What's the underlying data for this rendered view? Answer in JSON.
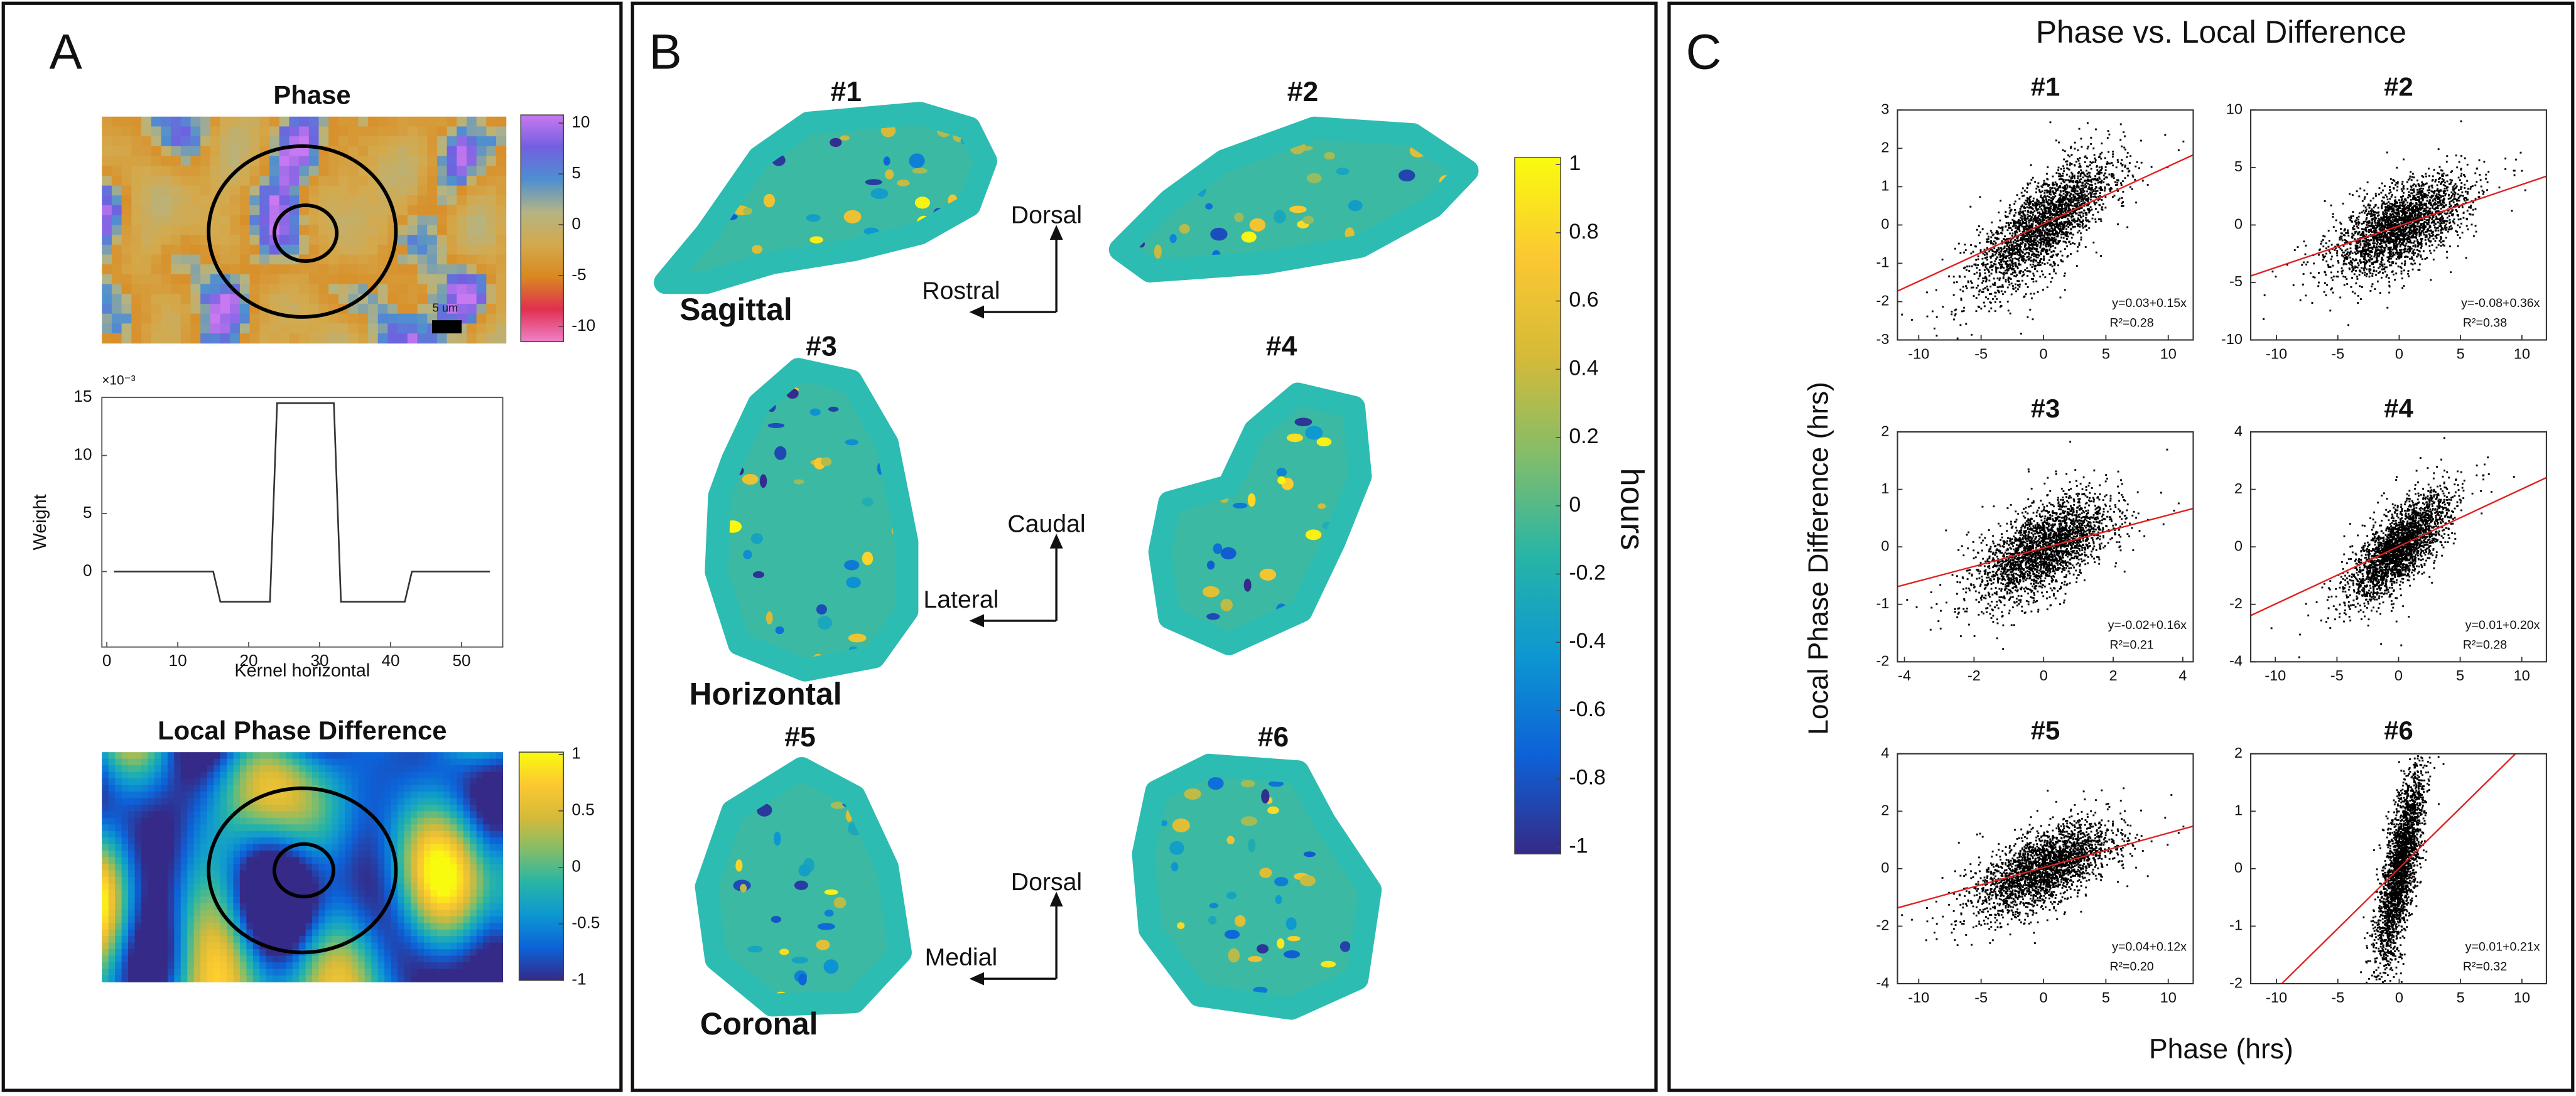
{
  "panel_a": {
    "label": "A",
    "phase": {
      "title": "Phase",
      "scale_bar": "5 um",
      "colorbar": {
        "lim": [
          -11.5,
          10.8
        ],
        "ticks": [
          10,
          5,
          0,
          -5,
          -10
        ]
      }
    },
    "kernel": {
      "exponent_label": "×10⁻³",
      "ylabel": "Weight",
      "xlabel": "Kernel horizontal",
      "xlim": [
        -0.7,
        55.8
      ],
      "ylim": [
        -6.5,
        15
      ],
      "xticks": [
        0,
        10,
        20,
        30,
        40,
        50
      ],
      "yticks": [
        0,
        5,
        10,
        15
      ],
      "x": [
        1,
        15,
        16,
        23,
        24,
        32,
        33,
        42,
        43,
        54
      ],
      "y": [
        0,
        0,
        -2.6,
        -2.6,
        14.5,
        14.5,
        -2.6,
        -2.6,
        0,
        0
      ]
    },
    "local_phase_difference": {
      "title": "Local Phase Difference",
      "colorbar": {
        "lim": [
          -1,
          1.02
        ],
        "ticks": [
          1,
          0.5,
          0,
          -0.5,
          -1
        ]
      }
    }
  },
  "panel_b": {
    "label": "B",
    "sections": [
      "#1",
      "#2",
      "#3",
      "#4",
      "#5",
      "#6"
    ],
    "planes": [
      "Sagittal",
      "Horizontal",
      "Coronal"
    ],
    "orientation": [
      {
        "up": "Dorsal",
        "left": "Rostral"
      },
      {
        "up": "Caudal",
        "left": "Lateral"
      },
      {
        "up": "Dorsal",
        "left": "Medial"
      }
    ],
    "colorbar": {
      "label": "hours",
      "lim": [
        -1.02,
        1.02
      ],
      "ticks": [
        1,
        0.8,
        0.6,
        0.4,
        0.2,
        0,
        -0.2,
        -0.4,
        -0.6,
        -0.8,
        -1
      ]
    }
  },
  "panel_c": {
    "label": "C",
    "title": "Phase vs. Local Difference",
    "ylabel": "Local Phase Difference (hrs)",
    "xlabel": "Phase (hrs)",
    "plots": [
      {
        "title": "#1",
        "xlim": [
          -11.7,
          12
        ],
        "ylim": [
          -3,
          3
        ],
        "xticks": [
          -10,
          -5,
          0,
          5,
          10
        ],
        "yticks": [
          3,
          2,
          1,
          0,
          -1,
          -2,
          -3
        ],
        "fit": {
          "intercept": 0.03,
          "slope": 0.15,
          "equation": "y=0.03+0.15x",
          "r2": "R²=0.28"
        }
      },
      {
        "title": "#2",
        "xlim": [
          -12.1,
          12
        ],
        "ylim": [
          -10,
          10
        ],
        "xticks": [
          -10,
          -5,
          0,
          5,
          10
        ],
        "yticks": [
          10,
          5,
          0,
          -5,
          -10
        ],
        "fit": {
          "intercept": -0.08,
          "slope": 0.36,
          "equation": "y=-0.08+0.36x",
          "r2": "R²=0.38"
        }
      },
      {
        "title": "#3",
        "xlim": [
          -4.2,
          4.3
        ],
        "ylim": [
          -2,
          2
        ],
        "xticks": [
          -4,
          -2,
          0,
          2,
          4
        ],
        "yticks": [
          2,
          1,
          0,
          -1,
          -2
        ],
        "fit": {
          "intercept": -0.02,
          "slope": 0.16,
          "equation": "y=-0.02+0.16x",
          "r2": "R²=0.21"
        }
      },
      {
        "title": "#4",
        "xlim": [
          -12,
          12
        ],
        "ylim": [
          -4,
          4
        ],
        "xticks": [
          -10,
          -5,
          0,
          5,
          10
        ],
        "yticks": [
          4,
          2,
          0,
          -2,
          -4
        ],
        "fit": {
          "intercept": 0.01,
          "slope": 0.2,
          "equation": "y=0.01+0.20x",
          "r2": "R²=0.28"
        }
      },
      {
        "title": "#5",
        "xlim": [
          -11.7,
          12
        ],
        "ylim": [
          -4,
          4
        ],
        "xticks": [
          -10,
          -5,
          0,
          5,
          10
        ],
        "yticks": [
          4,
          2,
          0,
          -2,
          -4
        ],
        "fit": {
          "intercept": 0.04,
          "slope": 0.12,
          "equation": "y=0.04+0.12x",
          "r2": "R²=0.20"
        }
      },
      {
        "title": "#6",
        "xlim": [
          -12.1,
          12
        ],
        "ylim": [
          -2,
          2
        ],
        "xticks": [
          -10,
          -5,
          0,
          5,
          10
        ],
        "yticks": [
          2,
          1,
          0,
          -1,
          -2
        ],
        "fit": {
          "intercept": 0.01,
          "slope": 0.21,
          "equation": "y=0.01+0.21x",
          "r2": "R²=0.32"
        }
      }
    ]
  }
}
